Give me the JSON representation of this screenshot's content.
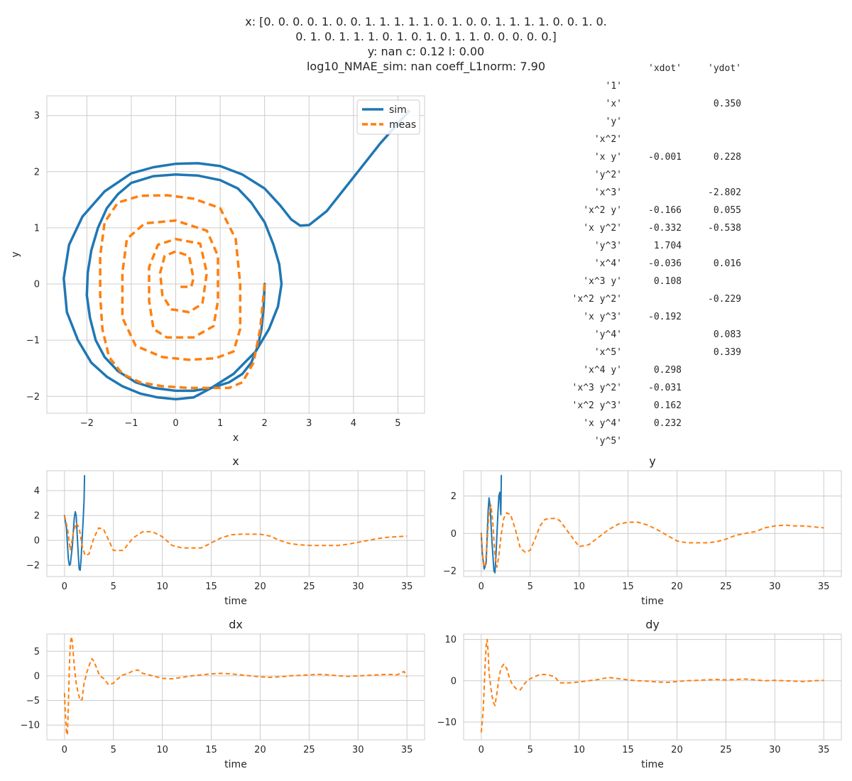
{
  "figure_title": {
    "lines": [
      "x: [0. 0. 0. 0. 1. 0. 0. 1. 1. 1. 1. 1. 0. 1. 0. 0. 1. 1. 1. 1. 0. 0. 1. 0.",
      "0. 1. 0. 1. 1. 1. 0. 1. 0. 1. 0. 1. 1. 0. 0. 0. 0. 0.]",
      "y: nan  c: 0.12  l: 0.00",
      "log10_NMAE_sim: nan  coeff_L1norm: 7.90"
    ]
  },
  "colors": {
    "sim": "#1f77b4",
    "meas": "#ff7f0e",
    "grid": "#cccccc",
    "axes_edge": "#cccccc"
  },
  "coeff_table": {
    "columns": [
      "'xdot'",
      "'ydot'"
    ],
    "rows": [
      {
        "term": "'1'",
        "xdot": "",
        "ydot": ""
      },
      {
        "term": "'x'",
        "xdot": "",
        "ydot": "0.350"
      },
      {
        "term": "'y'",
        "xdot": "",
        "ydot": ""
      },
      {
        "term": "'x^2'",
        "xdot": "",
        "ydot": ""
      },
      {
        "term": "'x y'",
        "xdot": "-0.001",
        "ydot": "0.228"
      },
      {
        "term": "'y^2'",
        "xdot": "",
        "ydot": ""
      },
      {
        "term": "'x^3'",
        "xdot": "",
        "ydot": "-2.802"
      },
      {
        "term": "'x^2 y'",
        "xdot": "-0.166",
        "ydot": "0.055"
      },
      {
        "term": "'x y^2'",
        "xdot": "-0.332",
        "ydot": "-0.538"
      },
      {
        "term": "'y^3'",
        "xdot": "1.704",
        "ydot": ""
      },
      {
        "term": "'x^4'",
        "xdot": "-0.036",
        "ydot": "0.016"
      },
      {
        "term": "'x^3 y'",
        "xdot": "0.108",
        "ydot": ""
      },
      {
        "term": "'x^2 y^2'",
        "xdot": "",
        "ydot": "-0.229"
      },
      {
        "term": "'x y^3'",
        "xdot": "-0.192",
        "ydot": ""
      },
      {
        "term": "'y^4'",
        "xdot": "",
        "ydot": "0.083"
      },
      {
        "term": "'x^5'",
        "xdot": "",
        "ydot": "0.339"
      },
      {
        "term": "'x^4 y'",
        "xdot": "0.298",
        "ydot": ""
      },
      {
        "term": "'x^3 y^2'",
        "xdot": "-0.031",
        "ydot": ""
      },
      {
        "term": "'x^2 y^3'",
        "xdot": "0.162",
        "ydot": ""
      },
      {
        "term": "'x y^4'",
        "xdot": "0.232",
        "ydot": ""
      },
      {
        "term": "'y^5'",
        "xdot": "",
        "ydot": ""
      }
    ]
  },
  "chart_data": [
    {
      "id": "phase",
      "type": "line",
      "title": "",
      "xlabel": "x",
      "ylabel": "y",
      "xlim": [
        -2.9,
        5.6
      ],
      "ylim": [
        -2.3,
        3.35
      ],
      "xticks": [
        -2,
        -1,
        0,
        1,
        2,
        3,
        4,
        5
      ],
      "yticks": [
        -2,
        -1,
        0,
        1,
        2,
        3
      ],
      "grid": true,
      "legend": "top-right",
      "series": [
        {
          "name": "sim",
          "style": "solid",
          "x": [
            2.0,
            1.98,
            1.93,
            1.85,
            1.7,
            1.5,
            1.2,
            0.8,
            0.4,
            0.0,
            -0.5,
            -0.9,
            -1.3,
            -1.6,
            -1.8,
            -1.93,
            -2.0,
            -1.98,
            -1.9,
            -1.75,
            -1.55,
            -1.3,
            -1.0,
            -0.5,
            0.0,
            0.5,
            1.0,
            1.4,
            1.7,
            2.0,
            2.2,
            2.33,
            2.38,
            2.3,
            2.1,
            1.8,
            1.3,
            0.8,
            0.4,
            0.0,
            -0.4,
            -0.8,
            -1.2,
            -1.55,
            -1.9,
            -2.2,
            -2.45,
            -2.52,
            -2.4,
            -2.1,
            -1.6,
            -1.0,
            -0.5,
            0.0,
            0.5,
            1.0,
            1.5,
            2.0,
            2.35,
            2.6,
            2.8,
            3.0,
            3.4,
            4.0,
            4.6,
            5.25
          ],
          "y": [
            0.0,
            -0.4,
            -0.8,
            -1.1,
            -1.4,
            -1.6,
            -1.75,
            -1.85,
            -1.9,
            -1.9,
            -1.85,
            -1.75,
            -1.55,
            -1.3,
            -1.0,
            -0.6,
            -0.2,
            0.2,
            0.6,
            1.0,
            1.35,
            1.6,
            1.8,
            1.92,
            1.95,
            1.93,
            1.85,
            1.7,
            1.45,
            1.1,
            0.7,
            0.35,
            0.0,
            -0.4,
            -0.8,
            -1.2,
            -1.6,
            -1.85,
            -2.02,
            -2.05,
            -2.02,
            -1.95,
            -1.82,
            -1.65,
            -1.4,
            -1.0,
            -0.5,
            0.1,
            0.7,
            1.2,
            1.65,
            1.97,
            2.08,
            2.14,
            2.15,
            2.1,
            1.95,
            1.7,
            1.4,
            1.15,
            1.04,
            1.05,
            1.3,
            1.9,
            2.5,
            3.08
          ]
        },
        {
          "name": "meas",
          "style": "dashed",
          "x": [
            2.0,
            1.9,
            1.75,
            1.5,
            1.2,
            0.8,
            0.3,
            -0.3,
            -0.8,
            -1.2,
            -1.5,
            -1.65,
            -1.7,
            -1.7,
            -1.6,
            -1.3,
            -0.8,
            -0.2,
            0.4,
            1.0,
            1.35,
            1.45,
            1.45,
            1.3,
            0.9,
            0.3,
            -0.3,
            -0.9,
            -1.2,
            -1.2,
            -1.1,
            -0.7,
            0.0,
            0.7,
            0.95,
            0.95,
            0.85,
            0.4,
            -0.2,
            -0.5,
            -0.6,
            -0.6,
            -0.4,
            0.0,
            0.55,
            0.7,
            0.6,
            0.3,
            -0.1,
            -0.3,
            -0.35,
            -0.25,
            0.0,
            0.3,
            0.4,
            0.35,
            0.1
          ],
          "y": [
            0.0,
            -0.8,
            -1.4,
            -1.75,
            -1.85,
            -1.85,
            -1.85,
            -1.82,
            -1.75,
            -1.6,
            -1.3,
            -0.8,
            -0.2,
            0.5,
            1.1,
            1.45,
            1.57,
            1.58,
            1.52,
            1.35,
            0.8,
            0.0,
            -0.8,
            -1.2,
            -1.32,
            -1.35,
            -1.3,
            -1.1,
            -0.6,
            0.2,
            0.8,
            1.08,
            1.13,
            0.95,
            0.5,
            -0.3,
            -0.75,
            -0.95,
            -0.95,
            -0.8,
            -0.3,
            0.3,
            0.7,
            0.8,
            0.72,
            0.2,
            -0.35,
            -0.5,
            -0.45,
            -0.2,
            0.2,
            0.5,
            0.58,
            0.5,
            0.1,
            -0.05,
            -0.05
          ]
        }
      ]
    },
    {
      "id": "x_time",
      "type": "line",
      "title": "x",
      "xlabel": "time",
      "ylabel": "",
      "xlim": [
        -1.8,
        36.8
      ],
      "ylim": [
        -2.9,
        5.6
      ],
      "xticks": [
        0,
        5,
        10,
        15,
        20,
        25,
        30,
        35
      ],
      "yticks": [
        -2,
        0,
        2,
        4
      ],
      "grid": true,
      "series": [
        {
          "name": "sim",
          "style": "solid",
          "x": [
            0,
            0.2,
            0.4,
            0.5,
            0.6,
            0.8,
            1.0,
            1.1,
            1.2,
            1.4,
            1.5,
            1.6,
            1.7,
            1.8,
            1.9,
            2.0,
            2.05
          ],
          "y": [
            2.0,
            1.0,
            -1.5,
            -2.0,
            -1.9,
            -0.5,
            1.8,
            2.3,
            2.0,
            -1.0,
            -2.3,
            -2.4,
            -1.5,
            0.0,
            1.5,
            3.2,
            5.2
          ]
        },
        {
          "name": "meas",
          "style": "dashed",
          "x": [
            0,
            0.3,
            0.6,
            0.9,
            1.2,
            1.5,
            1.8,
            2.1,
            2.5,
            3.0,
            3.5,
            4.0,
            5.0,
            6.0,
            7.0,
            8.0,
            9.0,
            10.0,
            11.0,
            12.0,
            13.0,
            14.0,
            15.0,
            16.0,
            17.0,
            18.0,
            19.0,
            20.0,
            21.0,
            22.0,
            23.0,
            24.0,
            25.0,
            26.0,
            27.0,
            28.0,
            29.0,
            30.0,
            31.0,
            32.0,
            33.0,
            34.0,
            35.0
          ],
          "y": [
            2.0,
            1.0,
            -0.8,
            0.6,
            1.4,
            1.0,
            -0.4,
            -1.2,
            -1.1,
            0.2,
            1.0,
            0.9,
            -0.8,
            -0.8,
            0.2,
            0.7,
            0.7,
            0.3,
            -0.4,
            -0.6,
            -0.6,
            -0.6,
            -0.2,
            0.2,
            0.45,
            0.5,
            0.5,
            0.5,
            0.35,
            0.0,
            -0.25,
            -0.35,
            -0.4,
            -0.4,
            -0.4,
            -0.4,
            -0.3,
            -0.15,
            0.0,
            0.15,
            0.25,
            0.3,
            0.35
          ]
        }
      ]
    },
    {
      "id": "y_time",
      "type": "line",
      "title": "y",
      "xlabel": "time",
      "ylabel": "",
      "xlim": [
        -1.8,
        36.8
      ],
      "ylim": [
        -2.3,
        3.35
      ],
      "xticks": [
        0,
        5,
        10,
        15,
        20,
        25,
        30,
        35
      ],
      "yticks": [
        -2,
        0,
        2
      ],
      "grid": true,
      "series": [
        {
          "name": "sim",
          "style": "solid",
          "x": [
            0,
            0.1,
            0.3,
            0.5,
            0.7,
            0.8,
            0.9,
            1.1,
            1.3,
            1.4,
            1.5,
            1.7,
            1.8,
            1.9,
            2.0,
            2.05
          ],
          "y": [
            0.0,
            -1.0,
            -1.9,
            -1.6,
            1.2,
            1.9,
            1.5,
            -0.5,
            -2.0,
            -2.1,
            -1.2,
            1.0,
            2.0,
            2.2,
            1.0,
            3.1
          ]
        },
        {
          "name": "meas",
          "style": "dashed",
          "x": [
            0,
            0.2,
            0.4,
            0.6,
            0.8,
            1.0,
            1.2,
            1.4,
            1.6,
            1.8,
            2.0,
            2.3,
            2.6,
            3.0,
            3.5,
            4.0,
            4.5,
            5.0,
            5.5,
            6.0,
            6.5,
            7.0,
            7.5,
            8.0,
            9.0,
            10.0,
            11.0,
            12.0,
            13.0,
            14.0,
            15.0,
            16.0,
            17.0,
            18.0,
            19.0,
            20.0,
            21.0,
            22.0,
            23.0,
            24.0,
            25.0,
            26.0,
            27.0,
            28.0,
            29.0,
            30.0,
            31.0,
            32.0,
            33.0,
            34.0,
            35.0
          ],
          "y": [
            0.0,
            -1.6,
            -1.8,
            -0.5,
            1.2,
            1.5,
            0.5,
            -1.2,
            -1.8,
            -1.2,
            -0.2,
            0.8,
            1.1,
            1.0,
            0.2,
            -0.8,
            -1.0,
            -0.9,
            -0.3,
            0.4,
            0.75,
            0.8,
            0.8,
            0.7,
            0.0,
            -0.7,
            -0.6,
            -0.2,
            0.2,
            0.5,
            0.6,
            0.6,
            0.45,
            0.2,
            -0.1,
            -0.4,
            -0.5,
            -0.5,
            -0.5,
            -0.45,
            -0.3,
            -0.1,
            0.0,
            0.1,
            0.3,
            0.4,
            0.45,
            0.4,
            0.4,
            0.35,
            0.3
          ]
        }
      ]
    },
    {
      "id": "dx_time",
      "type": "line",
      "title": "dx",
      "xlabel": "time",
      "ylabel": "",
      "xlim": [
        -1.8,
        36.8
      ],
      "ylim": [
        -13.0,
        8.5
      ],
      "xticks": [
        0,
        5,
        10,
        15,
        20,
        25,
        30,
        35
      ],
      "yticks": [
        -10,
        -5,
        0,
        5
      ],
      "grid": true,
      "series": [
        {
          "name": "meas",
          "style": "dashed",
          "x": [
            0,
            0.1,
            0.2,
            0.3,
            0.4,
            0.5,
            0.6,
            0.7,
            0.8,
            1.0,
            1.2,
            1.4,
            1.6,
            1.8,
            2.0,
            2.3,
            2.6,
            2.8,
            3.0,
            3.3,
            3.6,
            4.0,
            4.5,
            5.0,
            5.5,
            6.0,
            6.5,
            7.0,
            7.5,
            8.0,
            9.0,
            10.0,
            11.0,
            12.0,
            13.0,
            14.0,
            15.0,
            16.0,
            17.0,
            18.0,
            19.0,
            20.0,
            21.0,
            22.0,
            23.0,
            24.0,
            25.0,
            26.0,
            27.0,
            28.0,
            29.0,
            30.0,
            31.0,
            32.0,
            33.0,
            34.0,
            34.7,
            35.0
          ],
          "y": [
            -3.5,
            -8.0,
            -11.5,
            -12.0,
            -6.0,
            2.0,
            6.5,
            8.0,
            7.0,
            2.0,
            -1.5,
            -3.5,
            -5.0,
            -4.8,
            -1.5,
            0.8,
            2.5,
            3.5,
            3.0,
            1.5,
            0.0,
            -0.5,
            -1.8,
            -1.5,
            -0.5,
            0.2,
            0.5,
            1.0,
            1.2,
            0.5,
            0.0,
            -0.5,
            -0.6,
            -0.3,
            0.0,
            0.2,
            0.4,
            0.5,
            0.4,
            0.2,
            0.0,
            -0.2,
            -0.3,
            -0.2,
            0.0,
            0.1,
            0.2,
            0.3,
            0.2,
            0.0,
            -0.1,
            0.0,
            0.1,
            0.2,
            0.3,
            0.2,
            0.9,
            -0.2
          ]
        }
      ]
    },
    {
      "id": "dy_time",
      "type": "line",
      "title": "dy",
      "xlabel": "time",
      "ylabel": "",
      "xlim": [
        -1.8,
        36.8
      ],
      "ylim": [
        -14.3,
        11.3
      ],
      "xticks": [
        0,
        5,
        10,
        15,
        20,
        25,
        30,
        35
      ],
      "yticks": [
        -10,
        0,
        10
      ],
      "grid": true,
      "series": [
        {
          "name": "meas",
          "style": "dashed",
          "x": [
            0,
            0.1,
            0.2,
            0.3,
            0.4,
            0.5,
            0.6,
            0.7,
            0.8,
            1.0,
            1.2,
            1.4,
            1.6,
            1.8,
            2.0,
            2.3,
            2.6,
            2.9,
            3.2,
            3.6,
            4.0,
            4.5,
            5.0,
            5.5,
            6.0,
            6.5,
            7.0,
            7.5,
            8.0,
            9.0,
            10.0,
            11.0,
            12.0,
            13.0,
            14.0,
            15.0,
            16.0,
            17.0,
            18.0,
            19.0,
            20.0,
            21.0,
            22.0,
            23.0,
            24.0,
            25.0,
            26.0,
            27.0,
            28.0,
            29.0,
            30.0,
            31.0,
            32.0,
            33.0,
            34.0,
            35.0
          ],
          "y": [
            -12.5,
            -10.0,
            -7.0,
            -2.0,
            4.0,
            8.5,
            10.0,
            7.0,
            2.0,
            -2.0,
            -5.0,
            -6.0,
            -3.0,
            0.5,
            3.0,
            4.0,
            3.0,
            0.5,
            -1.0,
            -2.0,
            -2.2,
            -0.5,
            0.5,
            1.0,
            1.5,
            1.5,
            1.3,
            1.0,
            -0.5,
            -0.5,
            -0.3,
            0.0,
            0.3,
            0.8,
            0.5,
            0.2,
            0.0,
            -0.1,
            -0.3,
            -0.4,
            -0.2,
            0.0,
            0.1,
            0.2,
            0.3,
            0.2,
            0.3,
            0.4,
            0.2,
            0.0,
            0.1,
            0.0,
            -0.1,
            -0.2,
            0.0,
            0.1
          ]
        }
      ]
    }
  ]
}
